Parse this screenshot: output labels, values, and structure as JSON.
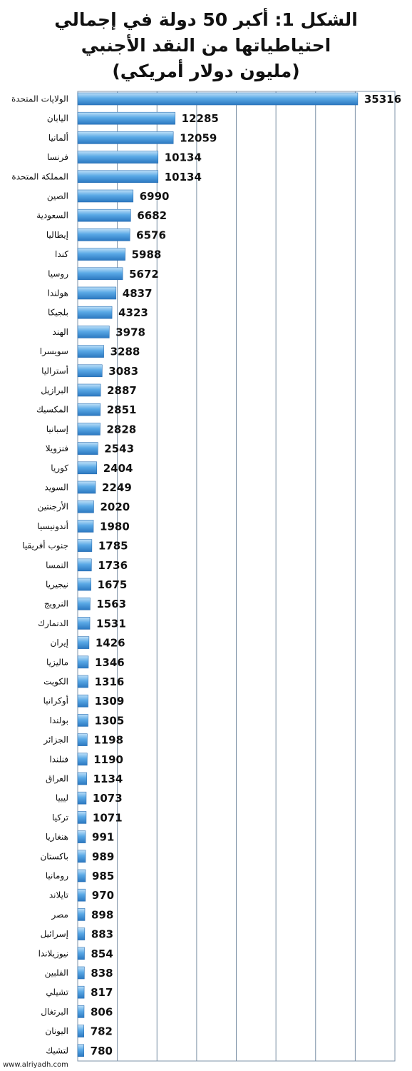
{
  "chart_data": {
    "type": "bar",
    "orientation": "horizontal",
    "title_lines": [
      "الشكل 1: أكبر 50 دولة في إجمالي",
      "احتياطياتها من النقد الأجنبي",
      "(مليون دولار أمريكي)"
    ],
    "categories": [
      "الولايات المتحدة",
      "اليابان",
      "ألمانيا",
      "فرنسا",
      "المملكة المتحدة",
      "الصين",
      "السعودية",
      "إيطاليا",
      "كندا",
      "روسيا",
      "هولندا",
      "بلجيكا",
      "الهند",
      "سويسرا",
      "أستراليا",
      "البرازيل",
      "المكسيك",
      "إسبانيا",
      "فنزويلا",
      "كوريا",
      "السويد",
      "الأرجنتين",
      "أندونيسيا",
      "جنوب أفريقيا",
      "النمسا",
      "نيجيريا",
      "النرويج",
      "الدنمارك",
      "إيران",
      "ماليزيا",
      "الكويت",
      "أوكرانيا",
      "بولندا",
      "الجزائر",
      "فنلندا",
      "العراق",
      "ليبيا",
      "تركيا",
      "هنغاريا",
      "باكستان",
      "رومانيا",
      "تايلاند",
      "مصر",
      "إسرائيل",
      "نيوزيلاندا",
      "الفلبين",
      "تشيلي",
      "البرتغال",
      "اليونان",
      "لتشيك"
    ],
    "values": [
      35316,
      12285,
      12059,
      10134,
      10134,
      6990,
      6682,
      6576,
      5988,
      5672,
      4837,
      4323,
      3978,
      3288,
      3083,
      2887,
      2851,
      2828,
      2543,
      2404,
      2249,
      2020,
      1980,
      1785,
      1736,
      1675,
      1563,
      1531,
      1426,
      1346,
      1316,
      1309,
      1305,
      1198,
      1190,
      1134,
      1073,
      1071,
      991,
      989,
      985,
      970,
      898,
      883,
      854,
      838,
      817,
      806,
      782,
      780
    ],
    "xlim": [
      0,
      40000
    ],
    "grid": true,
    "bar_color": "#5aa9e6",
    "grid_color": "#7f93a8"
  },
  "source": "www.alriyadh.com"
}
